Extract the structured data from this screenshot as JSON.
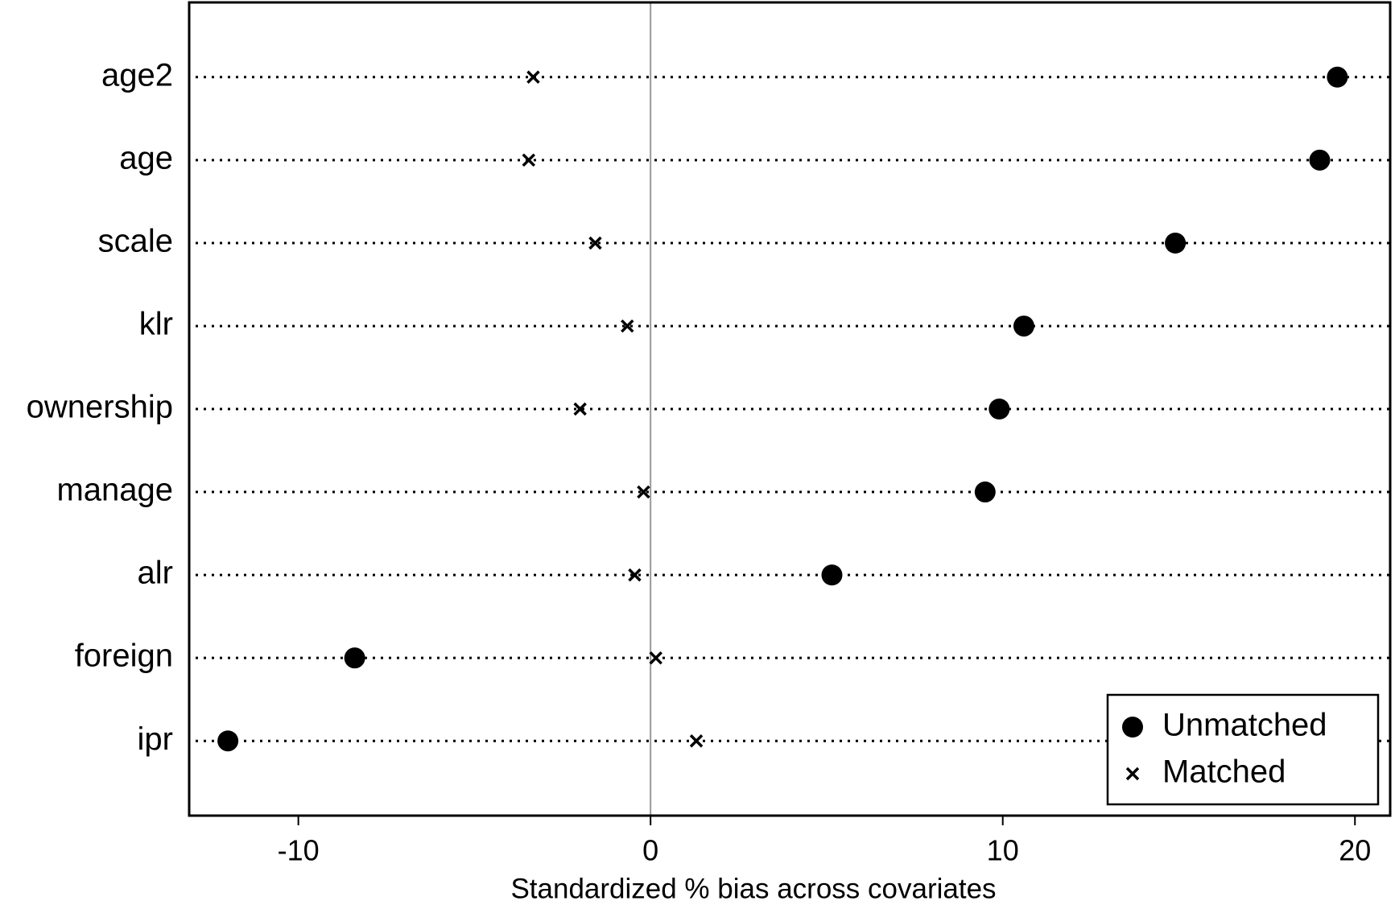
{
  "chart_data": {
    "type": "scatter",
    "x_label": "Standardized % bias across covariates",
    "categories": [
      "age2",
      "age",
      "scale",
      "klr",
      "ownership",
      "manage",
      "alr",
      "foreign",
      "ipr"
    ],
    "series": [
      {
        "name": "Unmatched",
        "marker": "circle",
        "color": "#000000",
        "values": [
          19.5,
          19.0,
          14.9,
          10.6,
          9.9,
          9.5,
          5.15,
          -8.4,
          -12.0
        ]
      },
      {
        "name": "Matched",
        "marker": "x",
        "color": "#000000",
        "values": [
          -3.33,
          -3.46,
          -1.57,
          -0.66,
          -2.0,
          -0.2,
          -0.45,
          0.15,
          1.3
        ]
      }
    ],
    "xlim": [
      -13.1,
      21.0
    ],
    "xticks": [
      -10,
      0,
      10,
      20
    ],
    "reference_line": 0,
    "legend": "lower right"
  }
}
